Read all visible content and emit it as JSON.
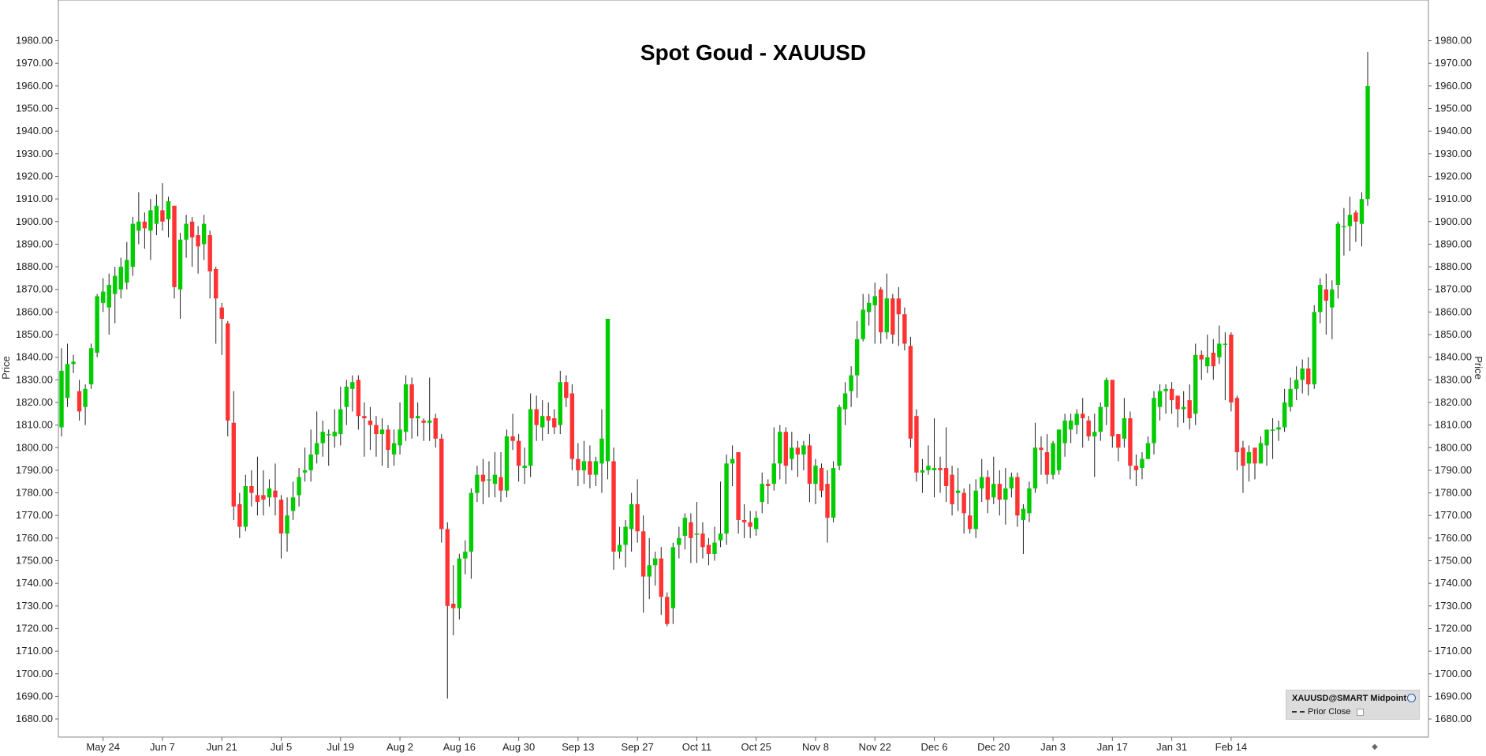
{
  "chart_data": {
    "type": "candlestick",
    "title": "Spot Goud - XAUUSD",
    "ylabel": "Price",
    "ylim": [
      1672,
      1998
    ],
    "y_ticks": [
      "1680.00",
      "1690.00",
      "1700.00",
      "1710.00",
      "1720.00",
      "1730.00",
      "1740.00",
      "1750.00",
      "1760.00",
      "1770.00",
      "1780.00",
      "1790.00",
      "1800.00",
      "1810.00",
      "1820.00",
      "1830.00",
      "1840.00",
      "1850.00",
      "1860.00",
      "1870.00",
      "1880.00",
      "1890.00",
      "1900.00",
      "1910.00",
      "1920.00",
      "1930.00",
      "1940.00",
      "1950.00",
      "1960.00",
      "1970.00",
      "1980.00"
    ],
    "x_ticks": [
      {
        "label": "May 24",
        "index": 7
      },
      {
        "label": "Jun 7",
        "index": 17
      },
      {
        "label": "Jun 21",
        "index": 27
      },
      {
        "label": "Jul 5",
        "index": 37
      },
      {
        "label": "Jul 19",
        "index": 47
      },
      {
        "label": "Aug 2",
        "index": 57
      },
      {
        "label": "Aug 16",
        "index": 67
      },
      {
        "label": "Aug 30",
        "index": 77
      },
      {
        "label": "Sep 13",
        "index": 87
      },
      {
        "label": "Sep 27",
        "index": 97
      },
      {
        "label": "Oct 11",
        "index": 107
      },
      {
        "label": "Oct 25",
        "index": 117
      },
      {
        "label": "Nov 8",
        "index": 127
      },
      {
        "label": "Nov 22",
        "index": 137
      },
      {
        "label": "Dec 6",
        "index": 147
      },
      {
        "label": "Dec 20",
        "index": 157
      },
      {
        "label": "Jan 3",
        "index": 167
      },
      {
        "label": "Jan 17",
        "index": 177
      },
      {
        "label": "Jan 31",
        "index": 187
      },
      {
        "label": "Feb 14",
        "index": 197
      }
    ],
    "candles": [
      [
        1809,
        1834,
        1844,
        1805
      ],
      [
        1822,
        1837,
        1846,
        1818
      ],
      [
        1837,
        1838,
        1841,
        1833
      ],
      [
        1825,
        1816,
        1830,
        1812
      ],
      [
        1818,
        1826,
        1828,
        1810
      ],
      [
        1828,
        1844,
        1846,
        1826
      ],
      [
        1842,
        1867,
        1868,
        1840
      ],
      [
        1864,
        1869,
        1875,
        1860
      ],
      [
        1862,
        1872,
        1877,
        1850
      ],
      [
        1868,
        1876,
        1880,
        1855
      ],
      [
        1870,
        1880,
        1884,
        1866
      ],
      [
        1873,
        1883,
        1891,
        1870
      ],
      [
        1880,
        1899,
        1902,
        1876
      ],
      [
        1896,
        1900,
        1913,
        1890
      ],
      [
        1900,
        1897,
        1904,
        1888
      ],
      [
        1896,
        1905,
        1910,
        1883
      ],
      [
        1899,
        1907,
        1912,
        1894
      ],
      [
        1905,
        1900,
        1917,
        1896
      ],
      [
        1901,
        1909,
        1911,
        1893
      ],
      [
        1907,
        1871,
        1906,
        1866
      ],
      [
        1870,
        1892,
        1895,
        1857
      ],
      [
        1892,
        1899,
        1903,
        1884
      ],
      [
        1900,
        1893,
        1902,
        1880
      ],
      [
        1894,
        1889,
        1898,
        1877
      ],
      [
        1890,
        1899,
        1903,
        1883
      ],
      [
        1894,
        1878,
        1896,
        1866
      ],
      [
        1879,
        1866,
        1880,
        1846
      ],
      [
        1862,
        1857,
        1864,
        1841
      ],
      [
        1855,
        1812,
        1856,
        1805
      ],
      [
        1811,
        1774,
        1825,
        1768
      ],
      [
        1775,
        1765,
        1780,
        1760
      ],
      [
        1765,
        1783,
        1788,
        1763
      ],
      [
        1783,
        1780,
        1790,
        1774
      ],
      [
        1779,
        1776,
        1796,
        1770
      ],
      [
        1779,
        1777,
        1790,
        1770
      ],
      [
        1778,
        1782,
        1786,
        1774
      ],
      [
        1781,
        1778,
        1793,
        1770
      ],
      [
        1777,
        1762,
        1779,
        1751
      ],
      [
        1762,
        1770,
        1778,
        1754
      ],
      [
        1772,
        1778,
        1785,
        1768
      ],
      [
        1779,
        1787,
        1791,
        1774
      ],
      [
        1789,
        1790,
        1800,
        1785
      ],
      [
        1790,
        1797,
        1808,
        1785
      ],
      [
        1797,
        1802,
        1816,
        1793
      ],
      [
        1802,
        1807,
        1812,
        1796
      ],
      [
        1806,
        1806,
        1808,
        1792
      ],
      [
        1805,
        1807,
        1817,
        1800
      ],
      [
        1806,
        1817,
        1827,
        1801
      ],
      [
        1818,
        1827,
        1830,
        1810
      ],
      [
        1826,
        1829,
        1832,
        1816
      ],
      [
        1830,
        1814,
        1832,
        1808
      ],
      [
        1814,
        1813,
        1820,
        1796
      ],
      [
        1812,
        1810,
        1818,
        1799
      ],
      [
        1810,
        1806,
        1814,
        1796
      ],
      [
        1806,
        1808,
        1813,
        1792
      ],
      [
        1808,
        1799,
        1810,
        1791
      ],
      [
        1797,
        1802,
        1808,
        1792
      ],
      [
        1801,
        1808,
        1820,
        1797
      ],
      [
        1807,
        1828,
        1832,
        1803
      ],
      [
        1828,
        1813,
        1831,
        1804
      ],
      [
        1813,
        1814,
        1820,
        1805
      ],
      [
        1812,
        1811,
        1813,
        1803
      ],
      [
        1811,
        1812,
        1831,
        1803
      ],
      [
        1813,
        1804,
        1815,
        1800
      ],
      [
        1804,
        1764,
        1806,
        1758
      ],
      [
        1764,
        1730,
        1767,
        1689
      ],
      [
        1731,
        1729,
        1748,
        1717
      ],
      [
        1729,
        1751,
        1753,
        1724
      ],
      [
        1751,
        1754,
        1759,
        1744
      ],
      [
        1754,
        1780,
        1782,
        1742
      ],
      [
        1780,
        1788,
        1792,
        1776
      ],
      [
        1788,
        1785,
        1795,
        1775
      ],
      [
        1786,
        1786,
        1794,
        1778
      ],
      [
        1784,
        1788,
        1798,
        1778
      ],
      [
        1787,
        1781,
        1798,
        1776
      ],
      [
        1781,
        1805,
        1808,
        1778
      ],
      [
        1805,
        1803,
        1815,
        1799
      ],
      [
        1803,
        1792,
        1806,
        1785
      ],
      [
        1791,
        1792,
        1800,
        1784
      ],
      [
        1792,
        1817,
        1824,
        1787
      ],
      [
        1817,
        1810,
        1823,
        1803
      ],
      [
        1809,
        1814,
        1821,
        1803
      ],
      [
        1814,
        1812,
        1820,
        1806
      ],
      [
        1813,
        1809,
        1817,
        1806
      ],
      [
        1810,
        1829,
        1834,
        1806
      ],
      [
        1829,
        1822,
        1832,
        1818
      ],
      [
        1824,
        1795,
        1828,
        1790
      ],
      [
        1795,
        1790,
        1802,
        1783
      ],
      [
        1790,
        1794,
        1803,
        1784
      ],
      [
        1794,
        1788,
        1801,
        1782
      ],
      [
        1788,
        1794,
        1796,
        1783
      ],
      [
        1793,
        1804,
        1817,
        1780
      ],
      [
        1794,
        1857,
        1857,
        1786
      ],
      [
        1794,
        1754,
        1800,
        1746
      ],
      [
        1754,
        1757,
        1765,
        1751
      ],
      [
        1757,
        1765,
        1768,
        1747
      ],
      [
        1764,
        1775,
        1780,
        1754
      ],
      [
        1775,
        1763,
        1786,
        1758
      ],
      [
        1763,
        1743,
        1770,
        1727
      ],
      [
        1743,
        1748,
        1760,
        1733
      ],
      [
        1748,
        1751,
        1754,
        1739
      ],
      [
        1751,
        1734,
        1756,
        1726
      ],
      [
        1734,
        1722,
        1736,
        1721
      ],
      [
        1729,
        1756,
        1758,
        1722
      ],
      [
        1757,
        1760,
        1765,
        1751
      ],
      [
        1761,
        1769,
        1771,
        1755
      ],
      [
        1767,
        1760,
        1771,
        1749
      ],
      [
        1762,
        1762,
        1776,
        1749
      ],
      [
        1762,
        1756,
        1767,
        1751
      ],
      [
        1757,
        1753,
        1760,
        1748
      ],
      [
        1753,
        1758,
        1765,
        1750
      ],
      [
        1759,
        1762,
        1785,
        1756
      ],
      [
        1762,
        1793,
        1797,
        1757
      ],
      [
        1793,
        1795,
        1801,
        1783
      ],
      [
        1798,
        1768,
        1798,
        1762
      ],
      [
        1768,
        1767,
        1775,
        1760
      ],
      [
        1767,
        1765,
        1772,
        1760
      ],
      [
        1764,
        1769,
        1772,
        1761
      ],
      [
        1776,
        1784,
        1789,
        1771
      ],
      [
        1784,
        1783,
        1786,
        1775
      ],
      [
        1784,
        1793,
        1809,
        1781
      ],
      [
        1793,
        1807,
        1810,
        1786
      ],
      [
        1807,
        1792,
        1809,
        1784
      ],
      [
        1795,
        1800,
        1807,
        1790
      ],
      [
        1800,
        1797,
        1803,
        1787
      ],
      [
        1797,
        1801,
        1803,
        1790
      ],
      [
        1801,
        1784,
        1806,
        1776
      ],
      [
        1784,
        1792,
        1795,
        1775
      ],
      [
        1791,
        1781,
        1793,
        1778
      ],
      [
        1784,
        1769,
        1790,
        1758
      ],
      [
        1769,
        1791,
        1794,
        1767
      ],
      [
        1792,
        1818,
        1819,
        1790
      ],
      [
        1817,
        1824,
        1829,
        1810
      ],
      [
        1825,
        1832,
        1836,
        1818
      ],
      [
        1832,
        1848,
        1856,
        1822
      ],
      [
        1848,
        1861,
        1868,
        1847
      ],
      [
        1860,
        1864,
        1868,
        1854
      ],
      [
        1863,
        1867,
        1873,
        1846
      ],
      [
        1870,
        1851,
        1871,
        1846
      ],
      [
        1851,
        1866,
        1877,
        1848
      ],
      [
        1866,
        1850,
        1868,
        1846
      ],
      [
        1866,
        1859,
        1871,
        1845
      ],
      [
        1859,
        1846,
        1862,
        1843
      ],
      [
        1845,
        1804,
        1849,
        1800
      ],
      [
        1814,
        1789,
        1817,
        1785
      ],
      [
        1789,
        1790,
        1795,
        1780
      ],
      [
        1790,
        1792,
        1801,
        1788
      ],
      [
        1790,
        1791,
        1813,
        1778
      ],
      [
        1791,
        1790,
        1796,
        1780
      ],
      [
        1791,
        1783,
        1809,
        1776
      ],
      [
        1788,
        1775,
        1792,
        1770
      ],
      [
        1780,
        1781,
        1791,
        1772
      ],
      [
        1780,
        1771,
        1782,
        1762
      ],
      [
        1770,
        1764,
        1784,
        1762
      ],
      [
        1764,
        1781,
        1786,
        1760
      ],
      [
        1782,
        1787,
        1795,
        1776
      ],
      [
        1787,
        1777,
        1790,
        1771
      ],
      [
        1778,
        1784,
        1796,
        1775
      ],
      [
        1784,
        1777,
        1790,
        1770
      ],
      [
        1777,
        1782,
        1791,
        1766
      ],
      [
        1782,
        1787,
        1789,
        1778
      ],
      [
        1787,
        1770,
        1789,
        1765
      ],
      [
        1768,
        1773,
        1775,
        1753
      ],
      [
        1771,
        1782,
        1785,
        1767
      ],
      [
        1782,
        1800,
        1811,
        1780
      ],
      [
        1800,
        1799,
        1805,
        1788
      ],
      [
        1798,
        1788,
        1806,
        1784
      ],
      [
        1788,
        1802,
        1803,
        1786
      ],
      [
        1790,
        1808,
        1808,
        1788
      ],
      [
        1802,
        1812,
        1815,
        1796
      ],
      [
        1808,
        1812,
        1815,
        1802
      ],
      [
        1810,
        1815,
        1817,
        1806
      ],
      [
        1815,
        1813,
        1822,
        1800
      ],
      [
        1812,
        1805,
        1814,
        1803
      ],
      [
        1805,
        1807,
        1815,
        1787
      ],
      [
        1807,
        1818,
        1820,
        1803
      ],
      [
        1818,
        1830,
        1831,
        1810
      ],
      [
        1830,
        1805,
        1826,
        1800
      ],
      [
        1806,
        1800,
        1806,
        1794
      ],
      [
        1804,
        1813,
        1822,
        1800
      ],
      [
        1813,
        1792,
        1816,
        1786
      ],
      [
        1792,
        1790,
        1797,
        1783
      ],
      [
        1791,
        1795,
        1798,
        1786
      ],
      [
        1795,
        1802,
        1805,
        1795
      ],
      [
        1802,
        1822,
        1825,
        1797
      ],
      [
        1818,
        1825,
        1828,
        1812
      ],
      [
        1825,
        1826,
        1828,
        1815
      ],
      [
        1826,
        1821,
        1829,
        1815
      ],
      [
        1823,
        1817,
        1821,
        1809
      ],
      [
        1817,
        1818,
        1825,
        1811
      ],
      [
        1821,
        1813,
        1828,
        1808
      ],
      [
        1815,
        1841,
        1846,
        1810
      ],
      [
        1841,
        1839,
        1843,
        1830
      ],
      [
        1836,
        1840,
        1850,
        1833
      ],
      [
        1842,
        1836,
        1848,
        1830
      ],
      [
        1840,
        1846,
        1854,
        1837
      ],
      [
        1846,
        1846,
        1851,
        1821
      ],
      [
        1850,
        1820,
        1851,
        1816
      ],
      [
        1822,
        1798,
        1823,
        1790
      ],
      [
        1800,
        1792,
        1803,
        1780
      ],
      [
        1793,
        1798,
        1801,
        1785
      ],
      [
        1800,
        1793,
        1797,
        1786
      ],
      [
        1793,
        1802,
        1805,
        1793
      ],
      [
        1801,
        1808,
        1808,
        1792
      ],
      [
        1808,
        1808,
        1813,
        1795
      ],
      [
        1808,
        1809,
        1812,
        1803
      ],
      [
        1809,
        1820,
        1826,
        1807
      ],
      [
        1818,
        1826,
        1831,
        1816
      ],
      [
        1826,
        1830,
        1836,
        1821
      ],
      [
        1830,
        1835,
        1839,
        1824
      ],
      [
        1835,
        1828,
        1840,
        1823
      ],
      [
        1828,
        1860,
        1863,
        1826
      ],
      [
        1860,
        1872,
        1875,
        1855
      ],
      [
        1870,
        1865,
        1877,
        1850
      ],
      [
        1862,
        1870,
        1874,
        1848
      ],
      [
        1872,
        1899,
        1900,
        1866
      ],
      [
        1898,
        1898,
        1906,
        1885
      ],
      [
        1898,
        1903,
        1911,
        1887
      ],
      [
        1904,
        1900,
        1905,
        1891
      ],
      [
        1899,
        1910,
        1913,
        1889
      ],
      [
        1910,
        1960,
        1975,
        1907
      ]
    ]
  },
  "legend": {
    "title": "XAUUSD@SMART Midpoint",
    "item": "Prior Close"
  },
  "colors": {
    "up": "#00cc00",
    "down": "#ff3333",
    "wick": "#222222"
  }
}
